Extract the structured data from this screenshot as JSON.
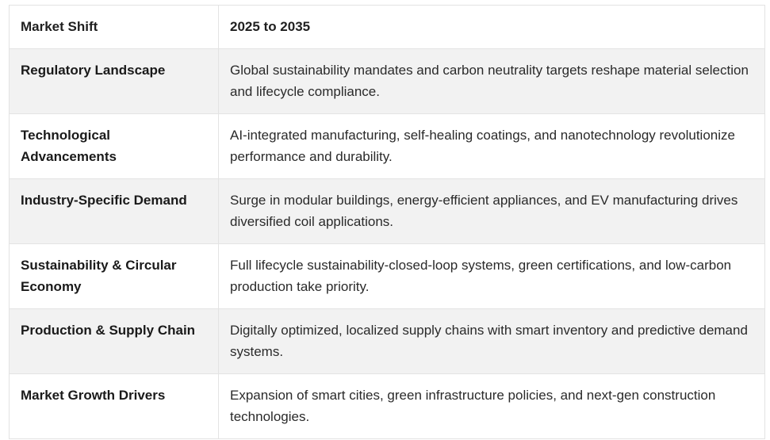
{
  "table": {
    "headers": [
      "Market Shift",
      "2025 to 2035"
    ],
    "rows": [
      {
        "key": "Regulatory Landscape",
        "value": "Global sustainability mandates and carbon neutrality targets reshape material selection and lifecycle compliance."
      },
      {
        "key": "Technological Advancements",
        "value": "AI-integrated manufacturing, self-healing coatings, and nanotechnology revolutionize performance and durability."
      },
      {
        "key": "Industry-Specific Demand",
        "value": "Surge in modular buildings, energy-efficient appliances, and EV manufacturing drives diversified coil applications."
      },
      {
        "key": "Sustainability & Circular Economy",
        "value": "Full lifecycle sustainability-closed-loop systems, green certifications, and low-carbon production take priority."
      },
      {
        "key": "Production & Supply Chain",
        "value": "Digitally optimized, localized supply chains with smart inventory and predictive demand systems."
      },
      {
        "key": "Market Growth Drivers",
        "value": "Expansion of smart cities, green infrastructure policies, and next-gen construction technologies."
      }
    ]
  }
}
